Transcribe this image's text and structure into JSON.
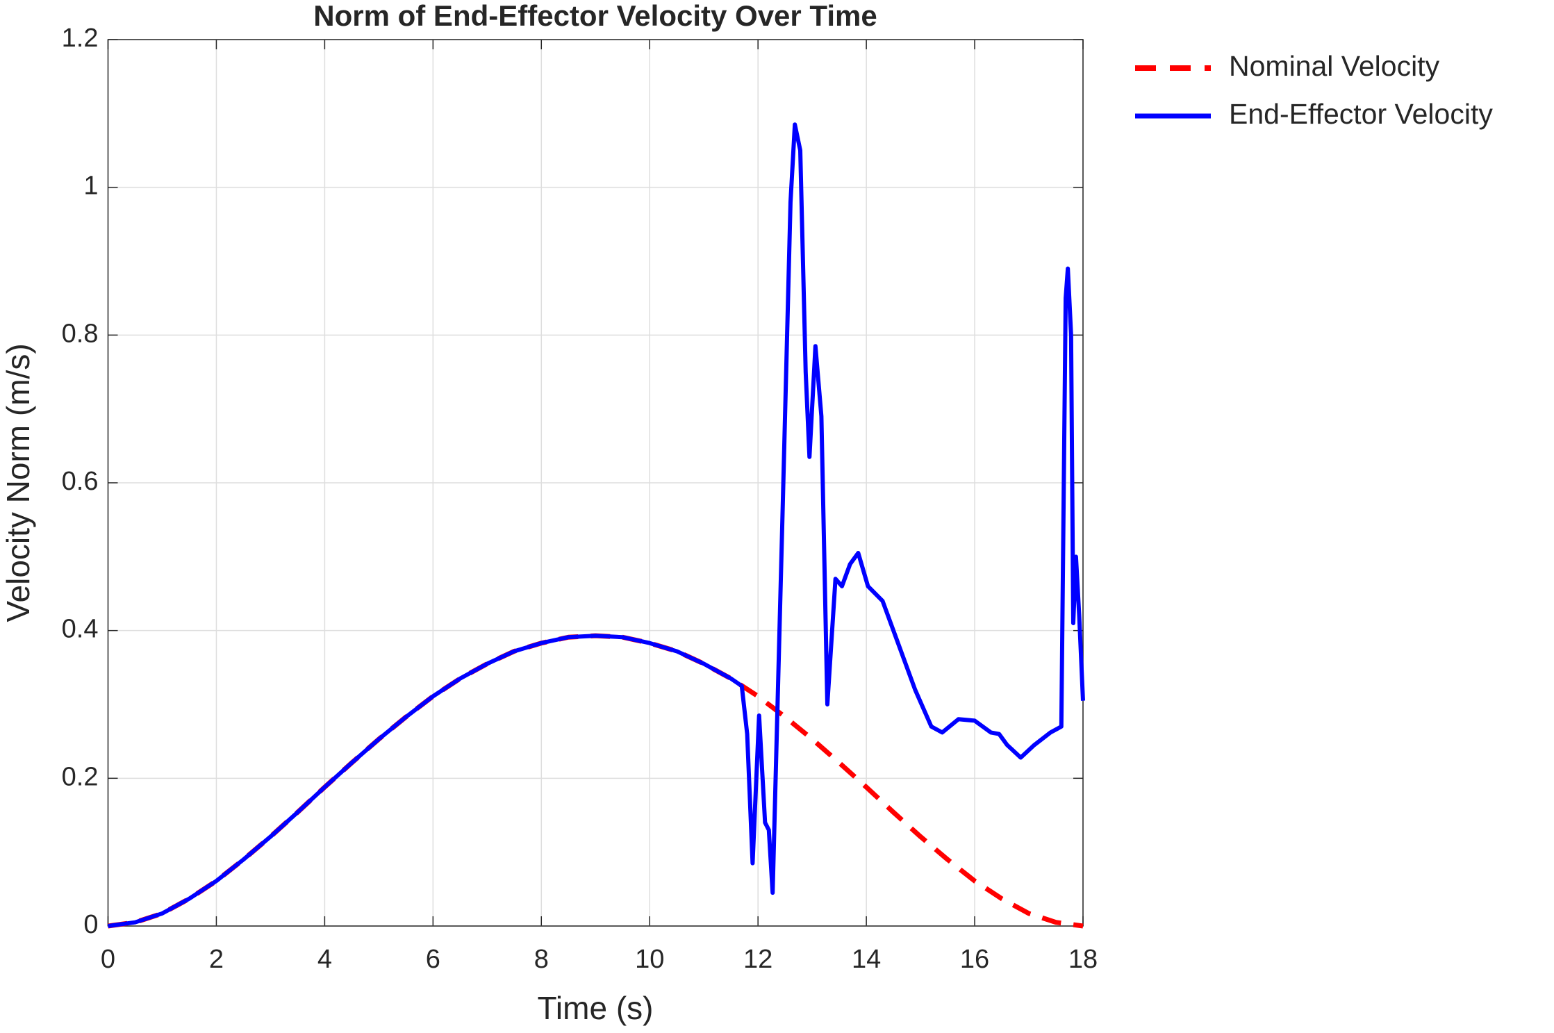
{
  "chart_data": {
    "type": "line",
    "title": "Norm of End-Effector Velocity Over Time",
    "x_label": "Time (s)",
    "y_label": "Velocity Norm (m/s)",
    "xlim": [
      0,
      18
    ],
    "ylim": [
      0,
      1.2
    ],
    "xticks": [
      0,
      2,
      4,
      6,
      8,
      10,
      12,
      14,
      16,
      18
    ],
    "yticks": [
      0,
      0.2,
      0.4,
      0.6,
      0.8,
      1,
      1.2
    ],
    "grid": true,
    "legend": "outside-right",
    "series": [
      {
        "name": "Nominal Velocity",
        "color": "#ff0000",
        "dash": true,
        "x": [
          0,
          0.5,
          1,
          1.5,
          2,
          2.5,
          3,
          3.5,
          4,
          4.5,
          5,
          5.5,
          6,
          6.5,
          7,
          7.5,
          8,
          8.5,
          9,
          9.5,
          10,
          10.5,
          11,
          11.5,
          12,
          12.5,
          13,
          13.5,
          14,
          14.5,
          15,
          15.5,
          16,
          16.5,
          17,
          17.5,
          18
        ],
        "values": [
          0,
          0.005,
          0.017,
          0.037,
          0.061,
          0.09,
          0.121,
          0.154,
          0.188,
          0.221,
          0.253,
          0.283,
          0.311,
          0.335,
          0.355,
          0.372,
          0.383,
          0.391,
          0.393,
          0.391,
          0.383,
          0.372,
          0.355,
          0.335,
          0.311,
          0.283,
          0.253,
          0.221,
          0.188,
          0.154,
          0.121,
          0.09,
          0.061,
          0.037,
          0.017,
          0.005,
          0
        ]
      },
      {
        "name": "End-Effector Velocity",
        "color": "#0000ff",
        "dash": false,
        "x": [
          0,
          0.5,
          1,
          1.5,
          2,
          2.5,
          3,
          3.5,
          4,
          4.5,
          5,
          5.5,
          6,
          6.5,
          7,
          7.5,
          8,
          8.5,
          9,
          9.5,
          10,
          10.5,
          11,
          11.5,
          11.7,
          11.8,
          11.9,
          12.02,
          12.13,
          12.2,
          12.27,
          12.45,
          12.6,
          12.68,
          12.78,
          12.88,
          12.95,
          13.06,
          13.17,
          13.28,
          13.43,
          13.55,
          13.7,
          13.85,
          14.03,
          14.3,
          14.6,
          14.9,
          15.2,
          15.4,
          15.7,
          16.0,
          16.3,
          16.45,
          16.6,
          16.85,
          17.1,
          17.4,
          17.6,
          17.68,
          17.72,
          17.78,
          17.82,
          17.87,
          17.93,
          18
        ],
        "values": [
          0,
          0.005,
          0.017,
          0.037,
          0.061,
          0.09,
          0.121,
          0.154,
          0.188,
          0.221,
          0.253,
          0.283,
          0.311,
          0.335,
          0.355,
          0.372,
          0.383,
          0.391,
          0.393,
          0.391,
          0.383,
          0.372,
          0.355,
          0.335,
          0.325,
          0.26,
          0.085,
          0.285,
          0.14,
          0.13,
          0.045,
          0.55,
          0.98,
          1.085,
          1.05,
          0.75,
          0.635,
          0.785,
          0.69,
          0.3,
          0.47,
          0.46,
          0.49,
          0.505,
          0.46,
          0.44,
          0.38,
          0.32,
          0.27,
          0.262,
          0.28,
          0.278,
          0.262,
          0.26,
          0.245,
          0.228,
          0.245,
          0.262,
          0.27,
          0.85,
          0.89,
          0.8,
          0.41,
          0.5,
          0.42,
          0.305
        ]
      }
    ]
  }
}
